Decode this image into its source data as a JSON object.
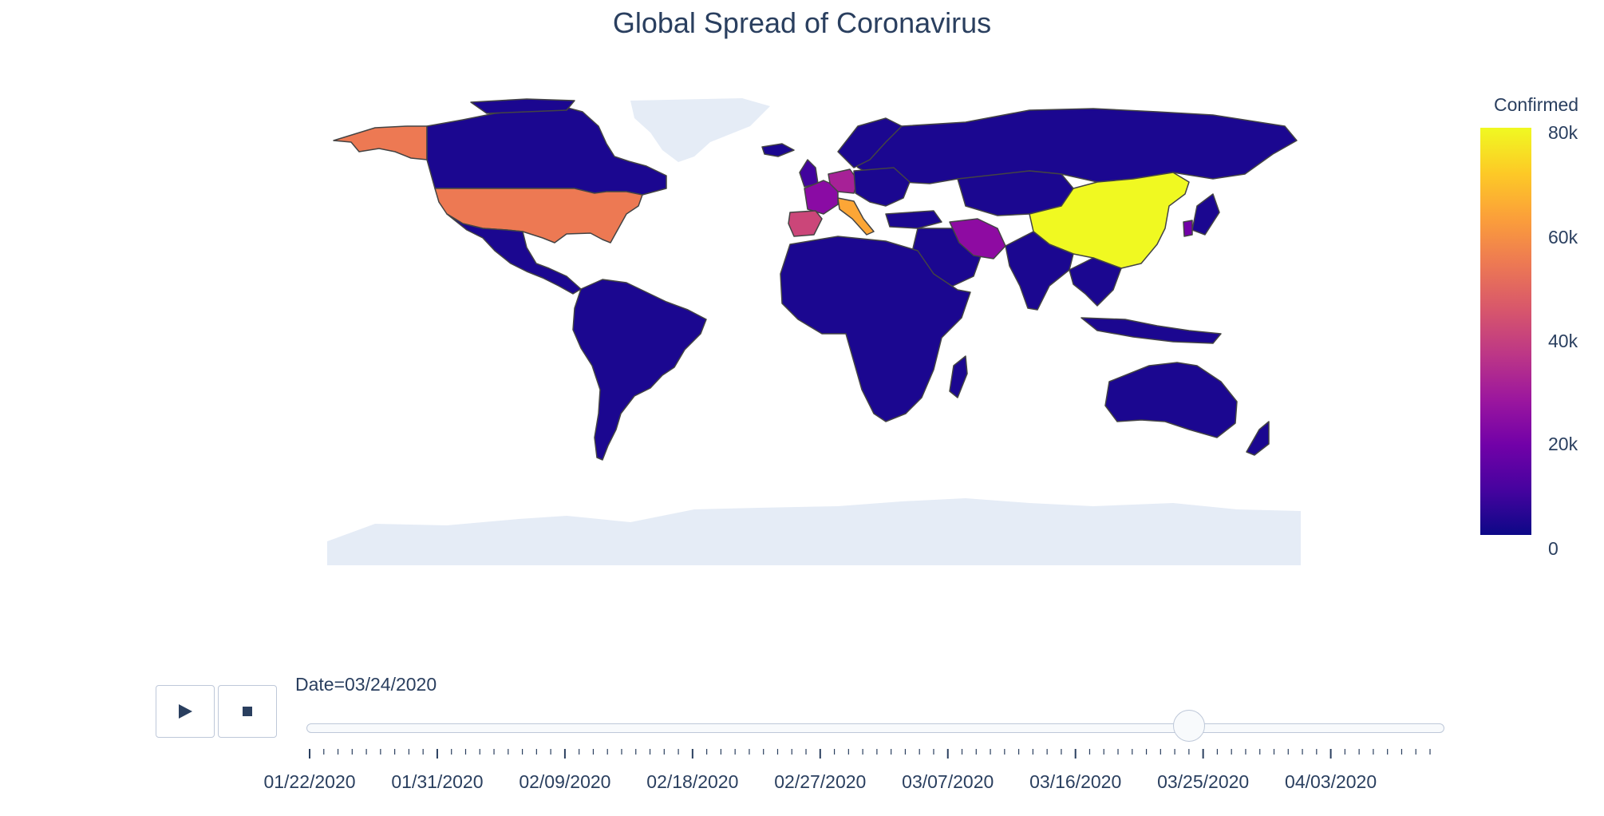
{
  "title": "Global Spread of Coronavirus",
  "colorbar": {
    "title": "Confirmed",
    "ticks": [
      "80k",
      "60k",
      "40k",
      "20k",
      "0"
    ],
    "range": [
      0,
      80000
    ],
    "colors": [
      "#0d0887",
      "#46039f",
      "#7201a8",
      "#9c179e",
      "#bd3786",
      "#d8576b",
      "#ed7953",
      "#fb9f3a",
      "#fdca26",
      "#f0f921"
    ]
  },
  "map": {
    "projection": "equirectangular",
    "land_no_data_color": "#e5ecf6",
    "border_color": "#444444",
    "countries": [
      {
        "name": "United States",
        "value": 53000
      },
      {
        "name": "China",
        "value": 81000
      },
      {
        "name": "Italy",
        "value": 64000
      },
      {
        "name": "Spain",
        "value": 40000
      },
      {
        "name": "Germany",
        "value": 32000
      },
      {
        "name": "Iran",
        "value": 24000
      },
      {
        "name": "France",
        "value": 22000
      },
      {
        "name": "Switzerland",
        "value": 9000
      },
      {
        "name": "South Korea",
        "value": 9000
      },
      {
        "name": "United Kingdom",
        "value": 8000
      },
      {
        "name": "Canada",
        "value": 2000
      },
      {
        "name": "Brazil",
        "value": 2000
      },
      {
        "name": "Australia",
        "value": 2000
      },
      {
        "name": "Russia",
        "value": 500
      },
      {
        "name": "India",
        "value": 500
      }
    ]
  },
  "animation": {
    "play_icon": "play-icon",
    "stop_icon": "stop-icon",
    "current_label": "Date=03/24/2020",
    "current_index": 62,
    "total_frames": 80,
    "tick_labels": [
      "01/22/2020",
      "01/31/2020",
      "02/09/2020",
      "02/18/2020",
      "02/27/2020",
      "03/07/2020",
      "03/16/2020",
      "03/25/2020",
      "04/03/2020"
    ]
  }
}
